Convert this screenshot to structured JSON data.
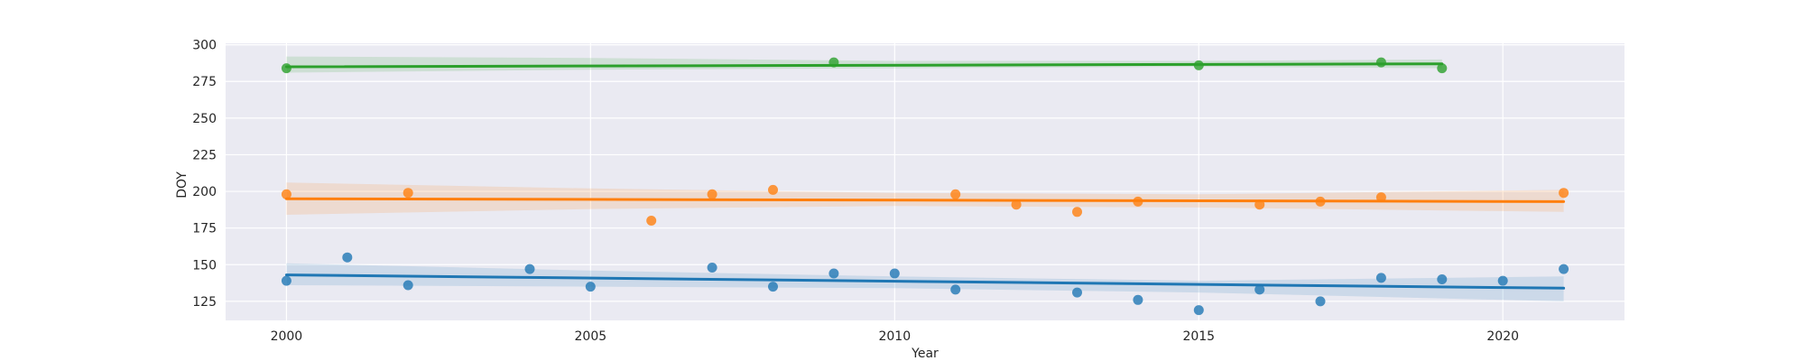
{
  "chart_data": {
    "type": "scatter",
    "title": "",
    "xlabel": "Year",
    "ylabel": "DOY",
    "xlim": [
      1999,
      2022
    ],
    "ylim": [
      112,
      301
    ],
    "xticks": [
      2000,
      2005,
      2010,
      2015,
      2020
    ],
    "yticks": [
      125,
      150,
      175,
      200,
      225,
      250,
      275,
      300
    ],
    "grid": true,
    "background": "#eaeaf2",
    "series": [
      {
        "color": "#1f77b4",
        "x": [
          2000,
          2001,
          2002,
          2004,
          2005,
          2007,
          2008,
          2009,
          2010,
          2011,
          2013,
          2014,
          2015,
          2016,
          2017,
          2018,
          2019,
          2020,
          2021
        ],
        "y": [
          139,
          155,
          136,
          147,
          135,
          148,
          135,
          144,
          144,
          133,
          131,
          126,
          119,
          133,
          125,
          141,
          140,
          139,
          147
        ],
        "trend": {
          "x": [
            2000,
            2021
          ],
          "y": [
            143,
            134
          ]
        },
        "ci": {
          "x": [
            2000,
            2005,
            2010,
            2015,
            2021
          ],
          "lower": [
            136,
            135,
            134,
            131,
            125
          ],
          "upper": [
            151,
            146,
            142,
            139,
            142
          ]
        }
      },
      {
        "color": "#ff7f0e",
        "x": [
          2000,
          2002,
          2006,
          2007,
          2008,
          2011,
          2012,
          2013,
          2014,
          2016,
          2017,
          2018,
          2021
        ],
        "y": [
          198,
          199,
          180,
          198,
          201,
          198,
          191,
          186,
          193,
          191,
          193,
          196,
          199
        ],
        "trend": {
          "x": [
            2000,
            2021
          ],
          "y": [
            195,
            193
          ]
        },
        "ci": {
          "x": [
            2000,
            2005,
            2010,
            2015,
            2021
          ],
          "lower": [
            184,
            188,
            190,
            189,
            186
          ],
          "upper": [
            206,
            202,
            199,
            198,
            201
          ]
        }
      },
      {
        "color": "#2ca02c",
        "x": [
          2000,
          2009,
          2015,
          2018,
          2019
        ],
        "y": [
          284,
          288,
          286,
          288,
          284
        ],
        "trend": {
          "x": [
            2000,
            2019
          ],
          "y": [
            285,
            287
          ]
        },
        "ci": {
          "x": [
            2000,
            2005,
            2010,
            2015,
            2019
          ],
          "lower": [
            281,
            283,
            284,
            285,
            284
          ],
          "upper": [
            292,
            291,
            289,
            289,
            290
          ]
        }
      }
    ]
  }
}
